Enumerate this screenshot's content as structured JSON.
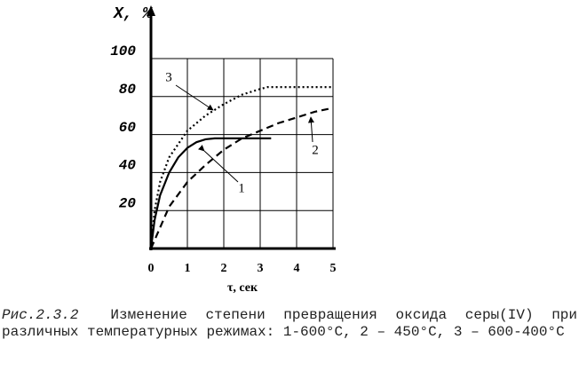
{
  "chart_data": {
    "type": "line",
    "y_label": "X, %",
    "x_label": "τ, сек",
    "xlim": [
      0,
      5
    ],
    "xticks": [
      0,
      1,
      2,
      3,
      4,
      5
    ],
    "ylim": [
      0,
      100
    ],
    "yticks": [
      20,
      40,
      60,
      80,
      100
    ],
    "grid": true,
    "series": [
      {
        "name": "1",
        "color": "#000000",
        "dash": "solid",
        "x": [
          0,
          0.1,
          0.25,
          0.5,
          0.75,
          1,
          1.25,
          1.5,
          1.75,
          2,
          2.5,
          3,
          3.3
        ],
        "values": [
          0,
          15,
          28,
          40,
          48,
          53,
          56,
          57.5,
          58,
          58,
          58,
          58,
          58
        ]
      },
      {
        "name": "2",
        "color": "#000000",
        "dash": "dashed",
        "x": [
          0,
          0.5,
          1,
          1.5,
          2,
          2.5,
          3,
          3.5,
          4,
          4.5,
          5
        ],
        "values": [
          0,
          22,
          35,
          44,
          52,
          58,
          62,
          66,
          69,
          72,
          74
        ]
      },
      {
        "name": "3",
        "color": "#000000",
        "dash": "dotted",
        "x": [
          0,
          0.1,
          0.25,
          0.5,
          1,
          1.5,
          2,
          2.5,
          3,
          3.2,
          4,
          5
        ],
        "values": [
          0,
          20,
          35,
          48,
          62,
          70,
          76,
          81,
          84,
          85,
          85,
          85
        ]
      }
    ]
  },
  "caption": {
    "label": "Рис.2.3.2",
    "text": "Изменение степени превращения оксида серы(IV) при различных температурных режимах: 1-600°C, 2 – 450°C, 3 – 600-400°C"
  }
}
